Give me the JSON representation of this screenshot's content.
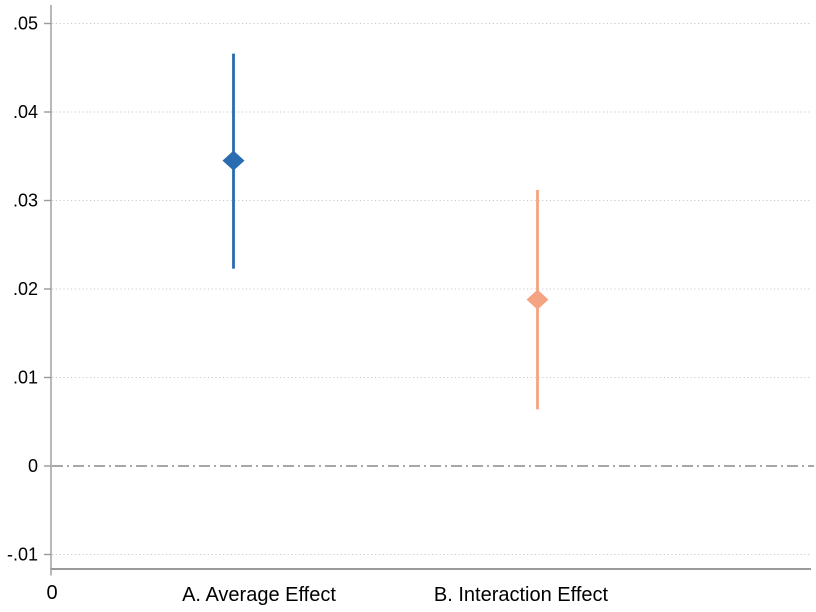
{
  "chart_data": {
    "type": "scatter",
    "subtype": "coefficient-plot-with-confidence-intervals",
    "title": "",
    "xlabel": "",
    "ylabel": "",
    "categories": [
      "A. Average Effect",
      "B. Interaction Effect"
    ],
    "series": [
      {
        "name": "Average Effect",
        "category": "A. Average Effect",
        "estimate": 0.0345,
        "ci_low": 0.0223,
        "ci_high": 0.0466,
        "color": "#2a6cb0",
        "marker": "diamond"
      },
      {
        "name": "Interaction Effect",
        "category": "B. Interaction Effect",
        "estimate": 0.0188,
        "ci_low": 0.0064,
        "ci_high": 0.0312,
        "color": "#f4a483",
        "marker": "diamond"
      }
    ],
    "x_axis": {
      "origin_label": "0"
    },
    "y_axis": {
      "ticks": [
        -0.01,
        0,
        0.01,
        0.02,
        0.03,
        0.04,
        0.05
      ],
      "tick_labels": [
        "-.01",
        "0",
        ".01",
        ".02",
        ".03",
        ".04",
        ".05"
      ],
      "ylim": [
        -0.0117,
        0.0521
      ]
    },
    "reference_line": {
      "y": 0,
      "style": "dashed",
      "color": "#8a8a8a"
    },
    "grid": {
      "horizontal": true,
      "style": "dotted",
      "color": "#c9c9c9"
    },
    "legend": "none",
    "colors": {
      "axis": "#9a9a9a",
      "tick_label": "#000000",
      "background": "#ffffff"
    }
  }
}
